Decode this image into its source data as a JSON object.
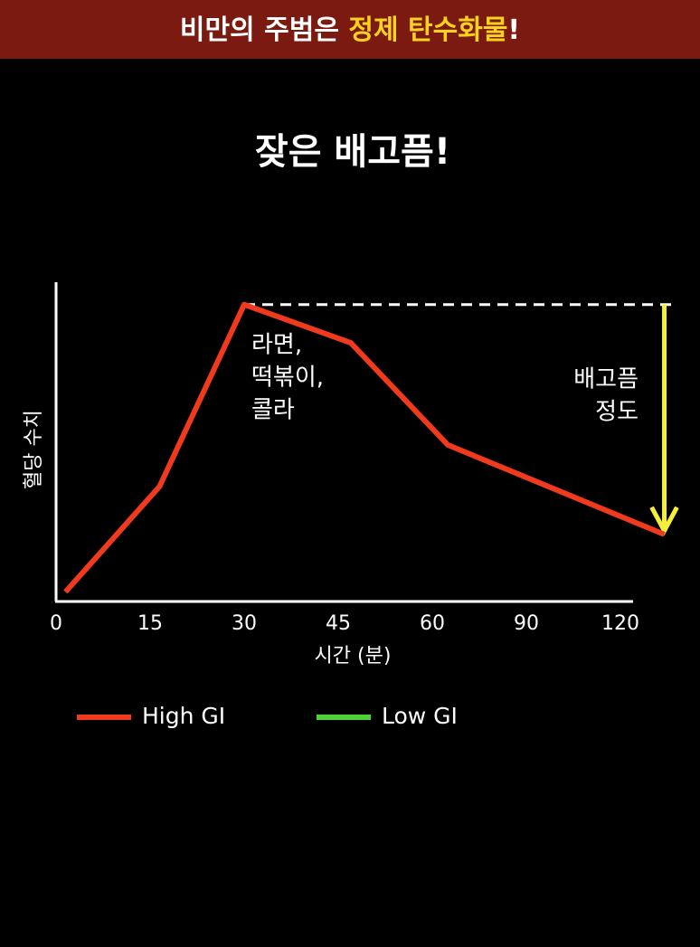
{
  "header": {
    "text": "비만의 주범은",
    "highlight": "정제 탄수화물",
    "end": "!"
  },
  "chart_data": {
    "type": "line",
    "title": "잦은 배고픔!",
    "x_label": "시간 (분)",
    "y_label": "혈당 수치",
    "x": [
      1.5,
      16.5,
      30,
      47,
      65,
      134
    ],
    "xlim": [
      0,
      124
    ],
    "xticks": [
      0,
      15,
      30,
      45,
      60,
      90,
      120
    ],
    "ylim": [
      0,
      100
    ],
    "series": [
      {
        "name": "High GI",
        "color": "#f03a1e",
        "values": [
          3,
          36,
          93,
          81,
          49,
          21
        ]
      },
      {
        "name": "Low GI",
        "color": "#4cd137",
        "values": [
          null,
          null,
          null,
          null,
          null,
          null
        ]
      }
    ],
    "annotations": [
      {
        "lines": [
          "라면,",
          "떡볶이,",
          "콜라"
        ]
      },
      {
        "lines": [
          "배고픔",
          "정도"
        ]
      }
    ]
  }
}
